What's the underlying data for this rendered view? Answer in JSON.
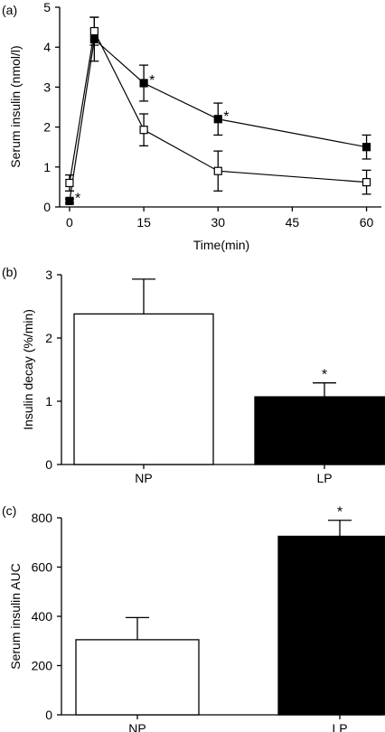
{
  "panels": [
    {
      "label": "(a)",
      "chart_data": {
        "type": "line",
        "xlabel": "Time(min)",
        "ylabel": "Serum insulin (nmol/l)",
        "xlim": [
          -2,
          63
        ],
        "ylim": [
          0,
          5
        ],
        "xticks": [
          0,
          15,
          30,
          45,
          60
        ],
        "yticks": [
          0,
          1,
          2,
          3,
          4,
          5
        ],
        "x": [
          0,
          5,
          15,
          30,
          60
        ],
        "series": [
          {
            "marker": "filled-square",
            "color": "#000000",
            "values": [
              0.15,
              4.2,
              3.1,
              2.2,
              1.5
            ],
            "errors": [
              0.05,
              0.55,
              0.45,
              0.4,
              0.3
            ],
            "significance": [
              "*",
              "",
              "*",
              "*",
              ""
            ]
          },
          {
            "marker": "open-square",
            "color": "#ffffff",
            "values": [
              0.6,
              4.4,
              1.93,
              0.9,
              0.62
            ],
            "errors": [
              0.2,
              0.35,
              0.4,
              0.5,
              0.3
            ],
            "significance": [
              "",
              "",
              "",
              "",
              ""
            ]
          }
        ]
      }
    },
    {
      "label": "(b)",
      "chart_data": {
        "type": "bar",
        "categories": [
          "NP",
          "LP"
        ],
        "values": [
          2.38,
          1.07
        ],
        "errors": [
          0.55,
          0.22
        ],
        "significance": [
          "",
          "*"
        ],
        "colors": [
          "#ffffff",
          "#000000"
        ],
        "ylabel": "Insulin decay (%/min)",
        "ylim": [
          0,
          3
        ],
        "yticks": [
          0,
          1,
          2,
          3
        ]
      }
    },
    {
      "label": "(c)",
      "chart_data": {
        "type": "bar",
        "categories": [
          "NP",
          "LP"
        ],
        "values": [
          305,
          725
        ],
        "errors": [
          90,
          65
        ],
        "significance": [
          "",
          "*"
        ],
        "colors": [
          "#ffffff",
          "#000000"
        ],
        "ylabel": "Serum insulin AUC",
        "ylim": [
          0,
          800
        ],
        "yticks": [
          0,
          200,
          400,
          600,
          800
        ]
      }
    }
  ]
}
